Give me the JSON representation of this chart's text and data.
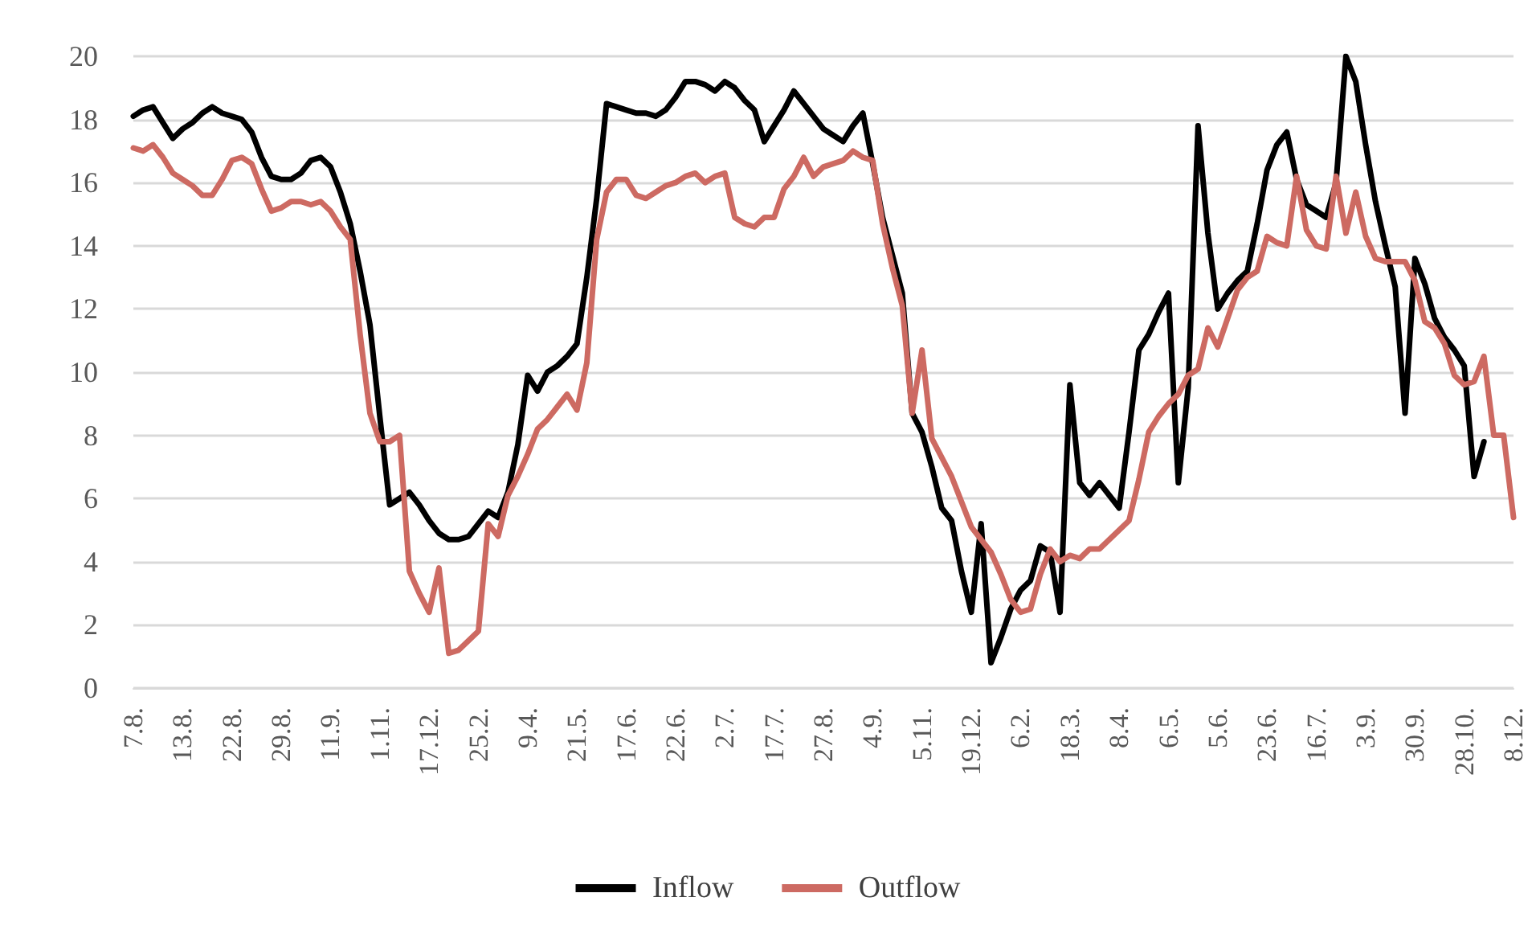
{
  "chart_data": {
    "type": "line",
    "categories": [
      "7.8.",
      null,
      null,
      null,
      null,
      "13.8.",
      null,
      null,
      null,
      null,
      "22.8.",
      null,
      null,
      null,
      null,
      "29.8.",
      null,
      null,
      null,
      null,
      "11.9.",
      null,
      null,
      null,
      null,
      "1.11.",
      null,
      null,
      null,
      null,
      "17.12.",
      null,
      null,
      null,
      null,
      "25.2.",
      null,
      null,
      null,
      null,
      "9.4.",
      null,
      null,
      null,
      null,
      "21.5.",
      null,
      null,
      null,
      null,
      "17.6.",
      null,
      null,
      null,
      null,
      "22.6.",
      null,
      null,
      null,
      null,
      "2.7.",
      null,
      null,
      null,
      null,
      "17.7.",
      null,
      null,
      null,
      null,
      "27.8.",
      null,
      null,
      null,
      null,
      "4.9.",
      null,
      null,
      null,
      null,
      "5.11.",
      null,
      null,
      null,
      null,
      "19.12.",
      null,
      null,
      null,
      null,
      "6.2.",
      null,
      null,
      null,
      null,
      "18.3.",
      null,
      null,
      null,
      null,
      "8.4.",
      null,
      null,
      null,
      null,
      "6.5.",
      null,
      null,
      null,
      null,
      "5.6.",
      null,
      null,
      null,
      null,
      "23.6.",
      null,
      null,
      null,
      null,
      "16.7.",
      null,
      null,
      null,
      null,
      "3.9.",
      null,
      null,
      null,
      null,
      "30.9.",
      null,
      null,
      null,
      null,
      "28.10.",
      null,
      null,
      null,
      null,
      "8.12."
    ],
    "series": [
      {
        "name": "Inflow",
        "color": "#000000",
        "values": [
          18.1,
          18.3,
          18.4,
          17.9,
          17.4,
          17.7,
          17.9,
          18.2,
          18.4,
          18.2,
          18.1,
          18.0,
          17.6,
          16.8,
          16.2,
          16.1,
          16.1,
          16.3,
          16.7,
          16.8,
          16.5,
          15.7,
          14.7,
          13.2,
          11.5,
          8.6,
          5.8,
          6.0,
          6.2,
          5.8,
          5.3,
          4.9,
          4.7,
          4.7,
          4.8,
          5.2,
          5.6,
          5.4,
          6.2,
          7.7,
          9.9,
          9.4,
          10.0,
          10.2,
          10.5,
          10.9,
          13.0,
          15.5,
          18.5,
          18.4,
          18.3,
          18.2,
          18.2,
          18.1,
          18.3,
          18.7,
          19.2,
          19.2,
          19.1,
          18.9,
          19.2,
          19.0,
          18.6,
          18.3,
          17.3,
          17.8,
          18.3,
          18.9,
          18.5,
          18.1,
          17.7,
          17.5,
          17.3,
          17.8,
          18.2,
          16.6,
          14.9,
          13.7,
          12.5,
          8.7,
          8.1,
          7.0,
          5.7,
          5.3,
          3.7,
          2.4,
          5.2,
          0.8,
          1.6,
          2.5,
          3.1,
          3.4,
          4.5,
          4.3,
          2.4,
          9.6,
          6.5,
          6.1,
          6.5,
          6.1,
          5.7,
          8.1,
          10.7,
          11.2,
          11.9,
          12.5,
          6.5,
          9.5,
          17.8,
          14.4,
          12.0,
          12.5,
          12.9,
          13.2,
          14.7,
          16.4,
          17.2,
          17.6,
          16.1,
          15.3,
          15.1,
          14.9,
          16.0,
          20.0,
          19.2,
          17.2,
          15.4,
          14.0,
          12.7,
          8.7,
          13.6,
          12.8,
          11.7,
          11.1,
          10.7,
          10.2,
          6.7,
          7.8,
          null,
          null,
          null
        ]
      },
      {
        "name": "Outflow",
        "color": "#cd6a62",
        "values": [
          17.1,
          17.0,
          17.2,
          16.8,
          16.3,
          16.1,
          15.9,
          15.6,
          15.6,
          16.1,
          16.7,
          16.8,
          16.6,
          15.8,
          15.1,
          15.2,
          15.4,
          15.4,
          15.3,
          15.4,
          15.1,
          14.6,
          14.2,
          11.2,
          8.7,
          7.8,
          7.8,
          8.0,
          3.7,
          3.0,
          2.4,
          3.8,
          1.1,
          1.2,
          1.5,
          1.8,
          5.2,
          4.8,
          6.1,
          6.7,
          7.4,
          8.2,
          8.5,
          8.9,
          9.3,
          8.8,
          10.3,
          14.2,
          15.7,
          16.1,
          16.1,
          15.6,
          15.5,
          15.7,
          15.9,
          16.0,
          16.2,
          16.3,
          16.0,
          16.2,
          16.3,
          14.9,
          14.7,
          14.6,
          14.9,
          14.9,
          15.8,
          16.2,
          16.8,
          16.2,
          16.5,
          16.6,
          16.7,
          17.0,
          16.8,
          16.7,
          14.7,
          13.3,
          12.1,
          8.7,
          10.7,
          7.9,
          7.3,
          6.7,
          5.9,
          5.1,
          4.7,
          4.3,
          3.6,
          2.8,
          2.4,
          2.5,
          3.6,
          4.4,
          4.0,
          4.2,
          4.1,
          4.4,
          4.4,
          4.7,
          5.0,
          5.3,
          6.6,
          8.1,
          8.6,
          9.0,
          9.3,
          9.9,
          10.1,
          11.4,
          10.8,
          11.7,
          12.6,
          13.0,
          13.2,
          14.3,
          14.1,
          14.0,
          16.2,
          14.5,
          14.0,
          13.9,
          16.2,
          14.4,
          15.7,
          14.3,
          13.6,
          13.5,
          13.5,
          13.5,
          12.9,
          11.6,
          11.4,
          10.9,
          9.9,
          9.6,
          9.7,
          10.5,
          8.0,
          8.0,
          5.4
        ]
      }
    ],
    "ylim": [
      0,
      20
    ],
    "yticks": [
      0,
      2,
      4,
      6,
      8,
      10,
      12,
      14,
      16,
      18,
      20
    ],
    "grid": "y",
    "legend": "bottom"
  }
}
